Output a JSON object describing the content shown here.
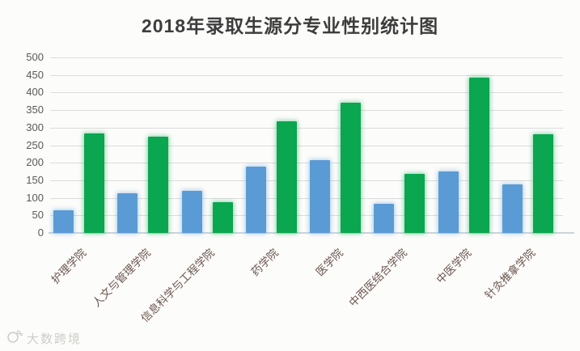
{
  "chart": {
    "title": "2018年录取生源分专业性别统计图",
    "watermark_text": "大数跨境"
  },
  "chart_data": {
    "type": "bar",
    "title": "2018年录取生源分专业性别统计图",
    "categories": [
      "护理学院",
      "人文与管理学院",
      "信息科学与工程学院",
      "药学院",
      "医学院",
      "中西医结合学院",
      "中医学院",
      "针灸推拿学院"
    ],
    "series": [
      {
        "name": "blue-series",
        "color": "#5b9bd5",
        "values": [
          65,
          112,
          120,
          190,
          207,
          82,
          176,
          138
        ]
      },
      {
        "name": "green-series",
        "color": "#0aa650",
        "values": [
          283,
          275,
          87,
          318,
          371,
          168,
          443,
          280
        ]
      }
    ],
    "xlabel": "",
    "ylabel": "",
    "ylim": [
      0,
      500
    ],
    "ytick_step": 50,
    "grid": true,
    "legend": "none",
    "x_label_rotation_deg": 45
  },
  "colors": {
    "background": "#fcfcfa",
    "gridline": "#dcdcdc",
    "baseline": "#ccd5db",
    "title_text": "#3d3d3d",
    "axis_tick_text": "#595959",
    "category_text": "#6b564f",
    "watermark_text": "#c7c5c1"
  }
}
